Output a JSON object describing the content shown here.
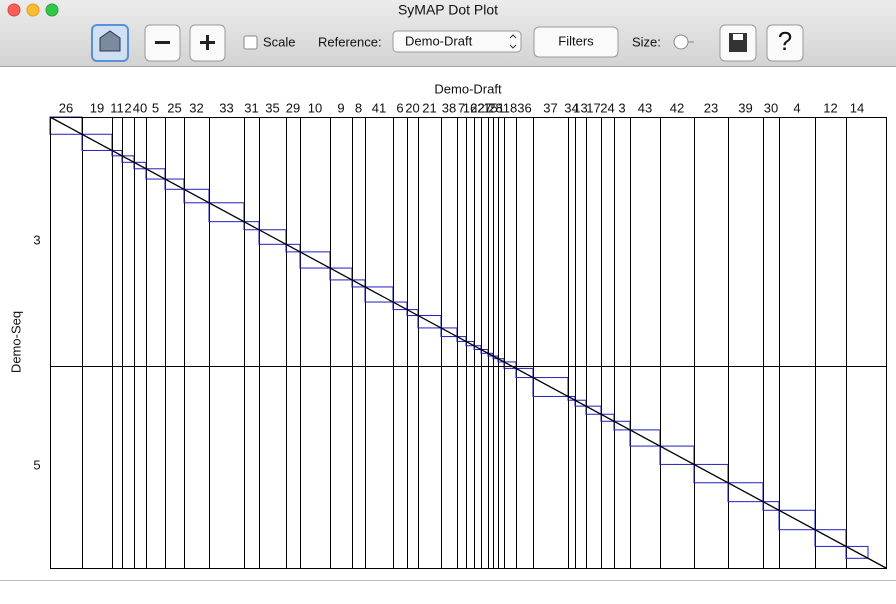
{
  "window": {
    "title": "SyMAP Dot Plot"
  },
  "toolbar": {
    "scale_label": "Scale",
    "reference_label": "Reference:",
    "reference_value": "Demo-Draft",
    "filters": "Filters",
    "size_label": "Size:",
    "help": "?"
  },
  "plot": {
    "x_title": "Demo-Draft",
    "y_title": "Demo-Seq",
    "x_contigs": [
      "26",
      "19",
      "11",
      "2",
      "40",
      "5",
      "25",
      "32",
      "33",
      "31",
      "35",
      "29",
      "10",
      "9",
      "8",
      "41",
      "6",
      "20",
      "21",
      "38",
      "7",
      "16",
      "22",
      "27",
      "15",
      "28",
      "1",
      "18",
      "36",
      "37",
      "34",
      "13",
      "17",
      "24",
      "3",
      "43",
      "42",
      "23",
      "39",
      "30",
      "4",
      "12",
      "14"
    ],
    "y_labels": [
      "3",
      "5"
    ]
  }
}
